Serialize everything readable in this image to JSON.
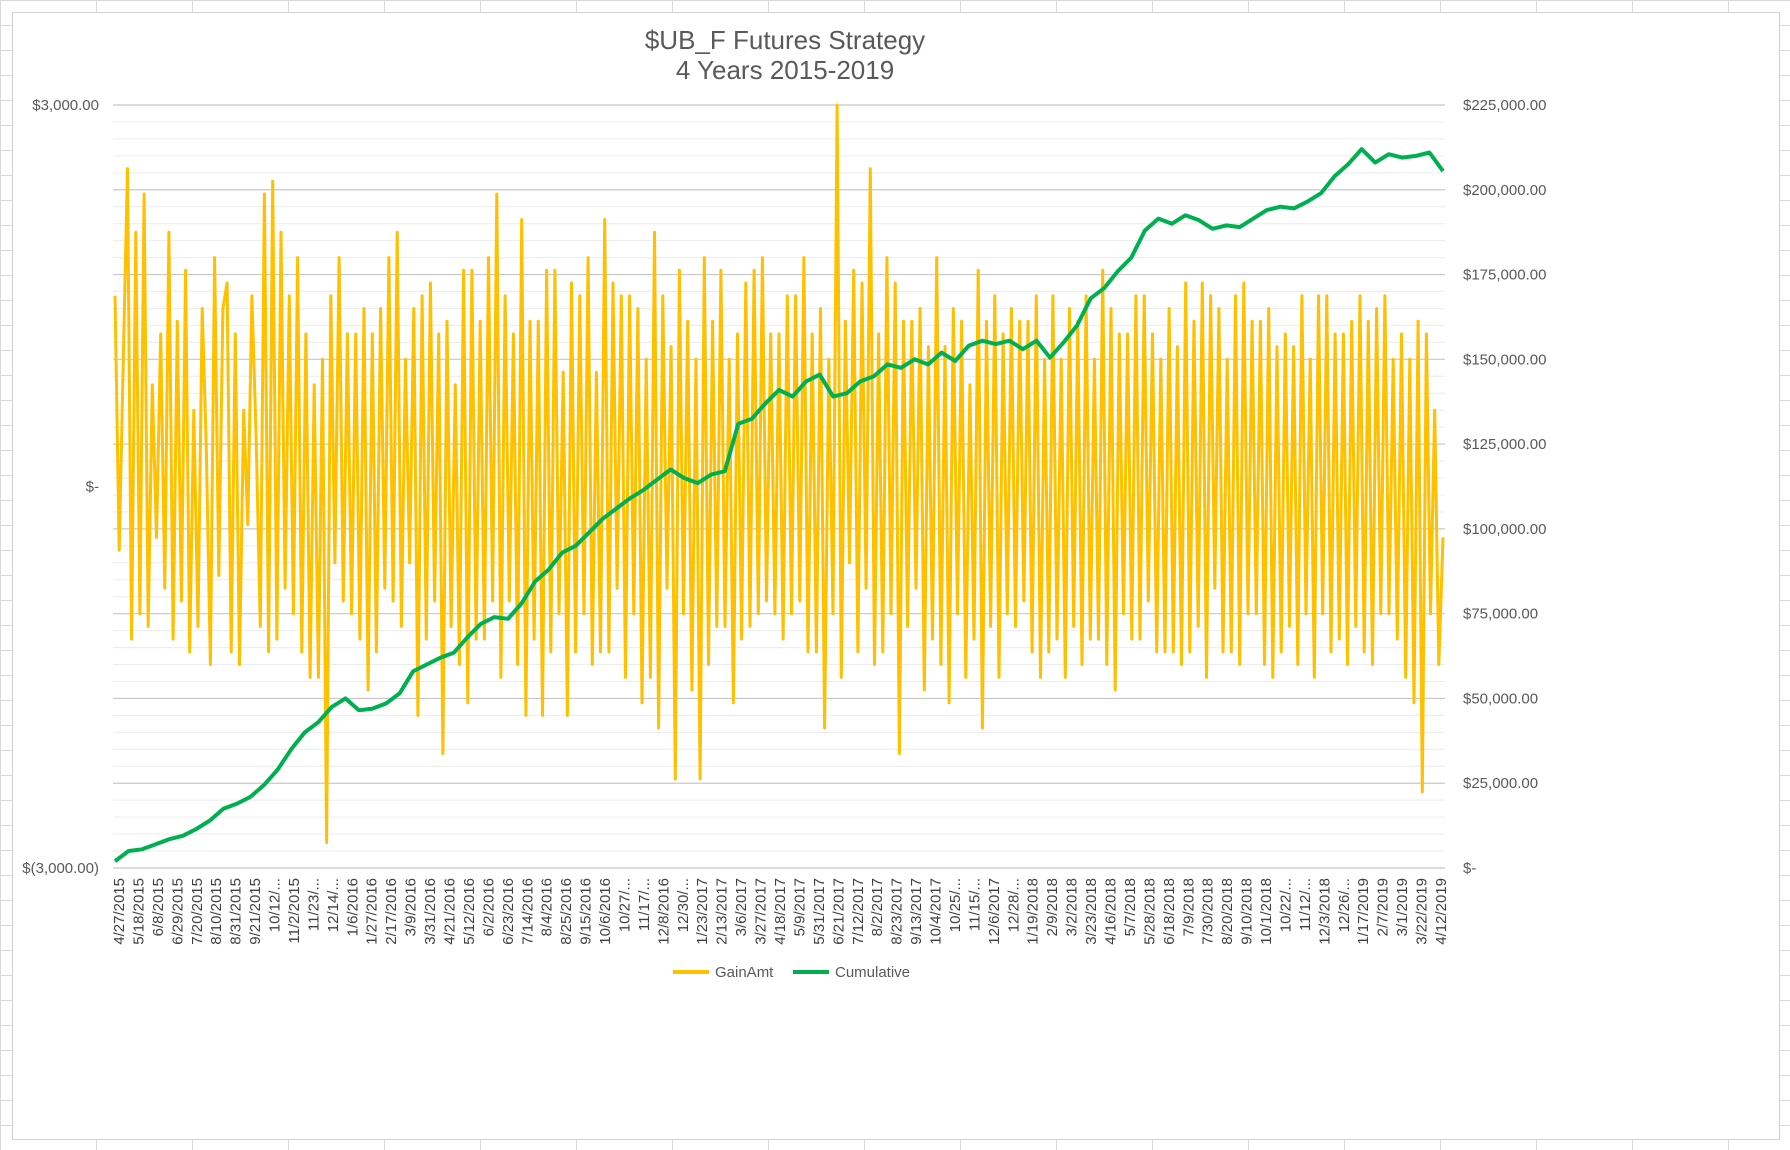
{
  "chart_data": {
    "type": "line",
    "title": "$UB_F Futures Strategy",
    "subtitle": "4 Years 2015-2019",
    "grid": true,
    "legend_position": "bottom",
    "y_left": {
      "range": [
        -3000,
        3000
      ],
      "tick_values": [
        3000,
        0,
        -3000
      ],
      "tick_labels": [
        "$3,000.00",
        "$-",
        "$(3,000.00)"
      ]
    },
    "y_right": {
      "range": [
        0,
        225000
      ],
      "tick_values": [
        225000,
        200000,
        175000,
        150000,
        125000,
        100000,
        75000,
        50000,
        25000,
        0
      ],
      "tick_labels": [
        "$225,000.00",
        "$200,000.00",
        "$175,000.00",
        "$150,000.00",
        "$125,000.00",
        "$100,000.00",
        "$75,000.00",
        "$50,000.00",
        "$25,000.00",
        "$-"
      ]
    },
    "x": {
      "tick_labels": [
        "4/27/2015",
        "5/18/2015",
        "6/8/2015",
        "6/29/2015",
        "7/20/2015",
        "8/10/2015",
        "8/31/2015",
        "9/21/2015",
        "10/12/...",
        "11/2/2015",
        "11/23/...",
        "12/14/...",
        "1/6/2016",
        "1/27/2016",
        "2/17/2016",
        "3/9/2016",
        "3/31/2016",
        "4/21/2016",
        "5/12/2016",
        "6/2/2016",
        "6/23/2016",
        "7/14/2016",
        "8/4/2016",
        "8/25/2016",
        "9/15/2016",
        "10/6/2016",
        "10/27/...",
        "11/17/...",
        "12/8/2016",
        "12/30/...",
        "1/23/2017",
        "2/13/2017",
        "3/6/2017",
        "3/27/2017",
        "4/18/2017",
        "5/9/2017",
        "5/31/2017",
        "6/21/2017",
        "7/12/2017",
        "8/2/2017",
        "8/23/2017",
        "9/13/2017",
        "10/4/2017",
        "10/25/...",
        "11/15/...",
        "12/6/2017",
        "12/28/...",
        "1/19/2018",
        "2/9/2018",
        "3/2/2018",
        "3/23/2018",
        "4/16/2018",
        "5/7/2018",
        "5/28/2018",
        "6/18/2018",
        "7/9/2018",
        "7/30/2018",
        "8/20/2018",
        "9/10/2018",
        "10/1/2018",
        "10/22/...",
        "11/12/...",
        "12/3/2018",
        "12/26/...",
        "1/17/2019",
        "2/7/2019",
        "3/1/2019",
        "3/22/2019",
        "4/12/2019"
      ]
    },
    "series": [
      {
        "name": "GainAmt",
        "axis": "left",
        "color": "#FFC000",
        "values": [
          1500,
          -500,
          1000,
          2500,
          -1200,
          2000,
          -1000,
          2300,
          -1100,
          800,
          -400,
          1200,
          -800,
          2000,
          -1200,
          1300,
          -900,
          1700,
          -1300,
          600,
          -1100,
          1400,
          300,
          -1400,
          1800,
          -700,
          1400,
          1600,
          -1300,
          1200,
          -1400,
          600,
          -300,
          1500,
          400,
          -1100,
          2300,
          -1300,
          2400,
          -1200,
          2000,
          -800,
          1500,
          -1000,
          1800,
          -1300,
          1200,
          -1500,
          800,
          -1500,
          1000,
          -2800,
          1500,
          -600,
          1800,
          -900,
          1200,
          -1000,
          1200,
          -1200,
          1400,
          -1600,
          1200,
          -1300,
          1400,
          -800,
          1800,
          -900,
          2000,
          -1100,
          1000,
          -600,
          1400,
          -1800,
          1500,
          -1200,
          1600,
          -900,
          1200,
          -2100,
          1300,
          -1100,
          800,
          -1400,
          1700,
          -1700,
          1700,
          -1200,
          1300,
          -1200,
          1800,
          -900,
          2300,
          -1500,
          1500,
          -900,
          1200,
          -1400,
          2100,
          -1800,
          1300,
          -1200,
          1300,
          -1800,
          1700,
          -1300,
          1700,
          -1000,
          900,
          -1800,
          1600,
          -1300,
          1500,
          -1000,
          1800,
          -1400,
          900,
          -1300,
          2100,
          -1300,
          1600,
          -800,
          1500,
          -1500,
          1500,
          -1000,
          1400,
          -1700,
          1000,
          -1500,
          2000,
          -1900,
          1500,
          -800,
          1100,
          -2300,
          1700,
          -1000,
          1300,
          -1600,
          1000,
          -2300,
          1800,
          -1400,
          1300,
          -1100,
          1700,
          -1100,
          1000,
          -1700,
          1200,
          -1200,
          1600,
          -1100,
          1700,
          -1000,
          1800,
          -900,
          1200,
          -1000,
          1200,
          -1200,
          1500,
          -1000,
          1500,
          -900,
          1800,
          -1300,
          1200,
          -1300,
          1400,
          -1900,
          1000,
          -1000,
          3000,
          -1500,
          1300,
          -600,
          1700,
          -1300,
          1600,
          -800,
          2500,
          -1400,
          1200,
          -1300,
          1800,
          -1000,
          1600,
          -2100,
          1300,
          -1100,
          1300,
          -800,
          1400,
          -1600,
          1100,
          -1200,
          1800,
          -1400,
          1100,
          -1700,
          1400,
          -1000,
          1300,
          -1500,
          800,
          -1200,
          1700,
          -1900,
          1300,
          -1100,
          1500,
          -1500,
          1200,
          -1000,
          1400,
          -1100,
          1300,
          -900,
          1300,
          -1300,
          1500,
          -1500,
          1000,
          -1300,
          1500,
          -1200,
          1000,
          -1500,
          1400,
          -1100,
          1300,
          -1400,
          1500,
          -1200,
          1000,
          -1200,
          1700,
          -1400,
          1400,
          -1600,
          1200,
          -1000,
          1200,
          -1200,
          1500,
          -1200,
          1500,
          -900,
          1200,
          -1300,
          1000,
          -1300,
          1400,
          -1300,
          1100,
          -1400,
          1600,
          -1300,
          1300,
          -1100,
          1600,
          -1500,
          1500,
          -800,
          1400,
          -1300,
          1000,
          -1300,
          1500,
          -1400,
          1600,
          -1000,
          1300,
          -1000,
          1300,
          -1400,
          1400,
          -1500,
          1100,
          -1300,
          1200,
          -1100,
          1100,
          -1400,
          1500,
          -1000,
          1000,
          -1500,
          1500,
          -1000,
          1500,
          -1300,
          1200,
          -1200,
          1200,
          -1400,
          1300,
          -1100,
          1500,
          -1300,
          1300,
          -1400,
          1400,
          -1000,
          1500,
          -1000,
          1000,
          -1200,
          1200,
          -1500,
          1000,
          -1700,
          1300,
          -2400,
          1200,
          -1000,
          600,
          -1400,
          -400
        ]
      },
      {
        "name": "Cumulative",
        "axis": "right",
        "color": "#00B050",
        "values": [
          2000,
          5000,
          5500,
          7000,
          8500,
          9500,
          11500,
          14000,
          17500,
          19000,
          21000,
          24500,
          29000,
          35000,
          40000,
          43000,
          47500,
          50000,
          46500,
          47000,
          48500,
          51500,
          58000,
          60000,
          62000,
          63500,
          68000,
          72000,
          74000,
          73500,
          78000,
          84500,
          88000,
          93000,
          95000,
          99000,
          103000,
          106000,
          109000,
          111500,
          114500,
          117500,
          115000,
          113500,
          116000,
          117000,
          131000,
          132500,
          137000,
          141000,
          139000,
          143500,
          145500,
          139000,
          140000,
          143500,
          145000,
          148500,
          147500,
          150000,
          148500,
          152000,
          149500,
          154000,
          155500,
          154500,
          155500,
          153000,
          155500,
          150500,
          155000,
          160000,
          168000,
          171000,
          176000,
          180000,
          188000,
          191500,
          190000,
          192500,
          191000,
          188500,
          189500,
          189000,
          191500,
          194000,
          195000,
          194500,
          196500,
          199000,
          204000,
          207500,
          212000,
          208000,
          210500,
          209500,
          210000,
          211000,
          205500
        ]
      }
    ]
  },
  "legend": [
    {
      "label": "GainAmt",
      "color": "#FFC000"
    },
    {
      "label": "Cumulative",
      "color": "#00B050"
    }
  ]
}
